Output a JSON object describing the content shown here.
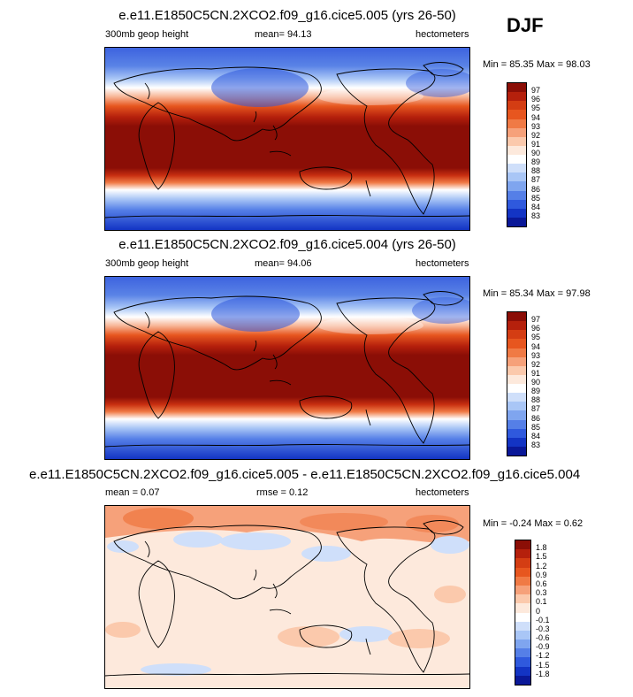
{
  "season": "DJF",
  "panels": [
    {
      "title": "e.e11.E1850C5CN.2XCO2.f09_g16.cice5.005 (yrs 26-50)",
      "left_label": "300mb geop height",
      "center_label": "mean=  94.13",
      "right_label": "hectometers",
      "minmax": "Min = 85.35 Max = 98.03",
      "colorbar_labels": [
        "97",
        "96",
        "95",
        "94",
        "93",
        "92",
        "91",
        "90",
        "89",
        "88",
        "87",
        "86",
        "85",
        "84",
        "83"
      ],
      "colorbar_colors": [
        "#8b0e06",
        "#b5200c",
        "#d43d13",
        "#e7561f",
        "#f07a45",
        "#f6a17a",
        "#fbc9ac",
        "#fde9dc",
        "#ffffff",
        "#cfdffa",
        "#a9c6f6",
        "#7fa5ef",
        "#557fe7",
        "#2f59dd",
        "#1334c4",
        "#0a1898"
      ]
    },
    {
      "title": "e.e11.E1850C5CN.2XCO2.f09_g16.cice5.004 (yrs 26-50)",
      "left_label": "300mb geop height",
      "center_label": "mean=  94.06",
      "right_label": "hectometers",
      "minmax": "Min = 85.34 Max = 97.98",
      "colorbar_labels": [
        "97",
        "96",
        "95",
        "94",
        "93",
        "92",
        "91",
        "90",
        "89",
        "88",
        "87",
        "86",
        "85",
        "84",
        "83"
      ],
      "colorbar_colors": [
        "#8b0e06",
        "#b5200c",
        "#d43d13",
        "#e7561f",
        "#f07a45",
        "#f6a17a",
        "#fbc9ac",
        "#fde9dc",
        "#ffffff",
        "#cfdffa",
        "#a9c6f6",
        "#7fa5ef",
        "#557fe7",
        "#2f59dd",
        "#1334c4",
        "#0a1898"
      ]
    },
    {
      "title": "e.e11.E1850C5CN.2XCO2.f09_g16.cice5.005 - e.e11.E1850C5CN.2XCO2.f09_g16.cice5.004",
      "left_label": "mean =  0.07",
      "center_label": "rmse =  0.12",
      "right_label": "hectometers",
      "minmax": "Min = -0.24 Max =  0.62",
      "colorbar_labels": [
        "1.8",
        "1.5",
        "1.2",
        "0.9",
        "0.6",
        "0.3",
        "0.1",
        "0",
        "-0.1",
        "-0.3",
        "-0.6",
        "-0.9",
        "-1.2",
        "-1.5",
        "-1.8"
      ],
      "colorbar_colors": [
        "#8b0e06",
        "#b5200c",
        "#d43d13",
        "#e7561f",
        "#f07a45",
        "#f6a17a",
        "#fbc9ac",
        "#fde9dc",
        "#ffffff",
        "#cfdffa",
        "#a9c6f6",
        "#7fa5ef",
        "#557fe7",
        "#2f59dd",
        "#1334c4",
        "#0a1898"
      ]
    }
  ]
}
